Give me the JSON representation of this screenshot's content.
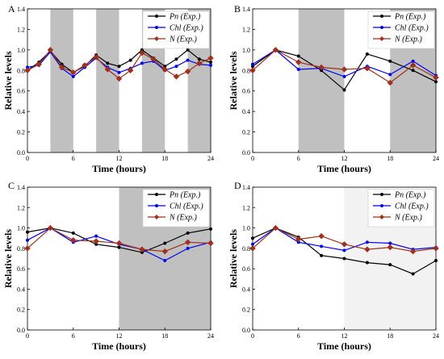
{
  "chart_data": [
    {
      "type": "line",
      "panel_label": "A",
      "xlabel": "Time (hours)",
      "ylabel": "Relative levels",
      "xlim": [
        0,
        24
      ],
      "ylim": [
        0,
        1.4
      ],
      "xticks": [
        "0",
        "6",
        "12",
        "18",
        "24"
      ],
      "yticks": [
        "0.0",
        "0.2",
        "0.4",
        "0.6",
        "0.8",
        "1.0",
        "1.2",
        "1.4"
      ],
      "dark_periods": [
        [
          3,
          6
        ],
        [
          9,
          12
        ],
        [
          15,
          18
        ],
        [
          21,
          24
        ]
      ],
      "shade_color": "#c0c0c0",
      "legend_position": "top-right",
      "series": [
        {
          "name": "Pn (Exp.)",
          "color": "#000000",
          "marker": "circle",
          "x": [
            0,
            1.5,
            3,
            4.5,
            6,
            7.5,
            9,
            10.5,
            12,
            13.5,
            15,
            16.5,
            18,
            19.5,
            21,
            22.5,
            24
          ],
          "y": [
            0.8,
            0.88,
            0.99,
            0.86,
            0.78,
            0.84,
            0.95,
            0.87,
            0.84,
            0.9,
            1.0,
            0.92,
            0.84,
            0.91,
            1.0,
            0.91,
            0.88
          ]
        },
        {
          "name": "Chl (Exp.)",
          "color": "#0000ee",
          "marker": "circle",
          "x": [
            0,
            1.5,
            3,
            4.5,
            6,
            7.5,
            9,
            10.5,
            12,
            13.5,
            15,
            16.5,
            18,
            19.5,
            21,
            22.5,
            24
          ],
          "y": [
            0.83,
            0.85,
            0.98,
            0.82,
            0.74,
            0.83,
            0.92,
            0.83,
            0.78,
            0.82,
            0.87,
            0.89,
            0.8,
            0.84,
            0.9,
            0.86,
            0.85
          ]
        },
        {
          "name": "N (Exp.)",
          "color": "#a0301c",
          "marker": "diamond",
          "x": [
            0,
            1.5,
            3,
            4.5,
            6,
            7.5,
            9,
            10.5,
            12,
            13.5,
            15,
            16.5,
            18,
            19.5,
            21,
            22.5,
            24
          ],
          "y": [
            0.8,
            0.86,
            1.0,
            0.83,
            0.78,
            0.85,
            0.93,
            0.81,
            0.72,
            0.8,
            0.97,
            0.91,
            0.81,
            0.74,
            0.79,
            0.87,
            0.92
          ]
        }
      ]
    },
    {
      "type": "line",
      "panel_label": "B",
      "xlabel": "Time (hours)",
      "ylabel": "Relative levels",
      "xlim": [
        0,
        24
      ],
      "ylim": [
        0,
        1.4
      ],
      "xticks": [
        "0",
        "6",
        "12",
        "18",
        "24"
      ],
      "yticks": [
        "0.0",
        "0.2",
        "0.4",
        "0.6",
        "0.8",
        "1.0",
        "1.2",
        "1.4"
      ],
      "dark_periods": [
        [
          6,
          12
        ],
        [
          18,
          24
        ]
      ],
      "shade_color": "#c0c0c0",
      "legend_position": "top-right",
      "series": [
        {
          "name": "Pn (Exp.)",
          "color": "#000000",
          "marker": "circle",
          "x": [
            0,
            3,
            6,
            9,
            12,
            15,
            18,
            21,
            24
          ],
          "y": [
            0.84,
            1.0,
            0.94,
            0.8,
            0.61,
            0.96,
            0.89,
            0.8,
            0.69
          ]
        },
        {
          "name": "Chl (Exp.)",
          "color": "#0000ee",
          "marker": "circle",
          "x": [
            0,
            3,
            6,
            9,
            12,
            15,
            18,
            21,
            24
          ],
          "y": [
            0.86,
            1.0,
            0.81,
            0.82,
            0.74,
            0.84,
            0.76,
            0.89,
            0.75
          ]
        },
        {
          "name": "N (Exp.)",
          "color": "#a0301c",
          "marker": "diamond",
          "x": [
            0,
            3,
            6,
            9,
            12,
            15,
            18,
            21,
            24
          ],
          "y": [
            0.8,
            1.0,
            0.88,
            0.83,
            0.81,
            0.82,
            0.68,
            0.85,
            0.73
          ]
        }
      ]
    },
    {
      "type": "line",
      "panel_label": "C",
      "xlabel": "Time (hours)",
      "ylabel": "Relative levels",
      "xlim": [
        0,
        24
      ],
      "ylim": [
        0,
        1.4
      ],
      "xticks": [
        "0",
        "6",
        "12",
        "18",
        "24"
      ],
      "yticks": [
        "0.0",
        "0.2",
        "0.4",
        "0.6",
        "0.8",
        "1.0",
        "1.2",
        "1.4"
      ],
      "dark_periods": [
        [
          12,
          24
        ]
      ],
      "shade_color": "#c0c0c0",
      "legend_position": "top-right",
      "series": [
        {
          "name": "Pn (Exp.)",
          "color": "#000000",
          "marker": "circle",
          "x": [
            0,
            3,
            6,
            9,
            12,
            15,
            18,
            21,
            24
          ],
          "y": [
            0.96,
            1.0,
            0.95,
            0.84,
            0.81,
            0.76,
            0.85,
            0.95,
            0.99
          ]
        },
        {
          "name": "Chl (Exp.)",
          "color": "#0000ee",
          "marker": "circle",
          "x": [
            0,
            3,
            6,
            9,
            12,
            15,
            18,
            21,
            24
          ],
          "y": [
            0.88,
            1.0,
            0.86,
            0.92,
            0.84,
            0.79,
            0.68,
            0.8,
            0.86
          ]
        },
        {
          "name": "N (Exp.)",
          "color": "#a0301c",
          "marker": "diamond",
          "x": [
            0,
            3,
            6,
            9,
            12,
            15,
            18,
            21,
            24
          ],
          "y": [
            0.8,
            1.0,
            0.88,
            0.87,
            0.85,
            0.79,
            0.77,
            0.86,
            0.85
          ]
        }
      ]
    },
    {
      "type": "line",
      "panel_label": "D",
      "xlabel": "Time (hours)",
      "ylabel": "Relative levels",
      "xlim": [
        0,
        24
      ],
      "ylim": [
        0,
        1.4
      ],
      "xticks": [
        "0",
        "6",
        "12",
        "18",
        "24"
      ],
      "yticks": [
        "0.0",
        "0.2",
        "0.4",
        "0.6",
        "0.8",
        "1.0",
        "1.2",
        "1.4"
      ],
      "dark_periods": [
        [
          12,
          24
        ]
      ],
      "shade_color": "#f2f2f2",
      "legend_position": "top-right",
      "series": [
        {
          "name": "Pn (Exp.)",
          "color": "#000000",
          "marker": "circle",
          "x": [
            0,
            3,
            6,
            9,
            12,
            15,
            18,
            21,
            24
          ],
          "y": [
            0.9,
            1.0,
            0.91,
            0.73,
            0.7,
            0.66,
            0.64,
            0.55,
            0.68
          ]
        },
        {
          "name": "Chl (Exp.)",
          "color": "#0000ee",
          "marker": "circle",
          "x": [
            0,
            3,
            6,
            9,
            12,
            15,
            18,
            21,
            24
          ],
          "y": [
            0.84,
            1.0,
            0.86,
            0.82,
            0.78,
            0.86,
            0.85,
            0.79,
            0.81
          ]
        },
        {
          "name": "N (Exp.)",
          "color": "#a0301c",
          "marker": "diamond",
          "x": [
            0,
            3,
            6,
            9,
            12,
            15,
            18,
            21,
            24
          ],
          "y": [
            0.8,
            1.0,
            0.89,
            0.92,
            0.84,
            0.79,
            0.81,
            0.77,
            0.8
          ]
        }
      ]
    }
  ]
}
